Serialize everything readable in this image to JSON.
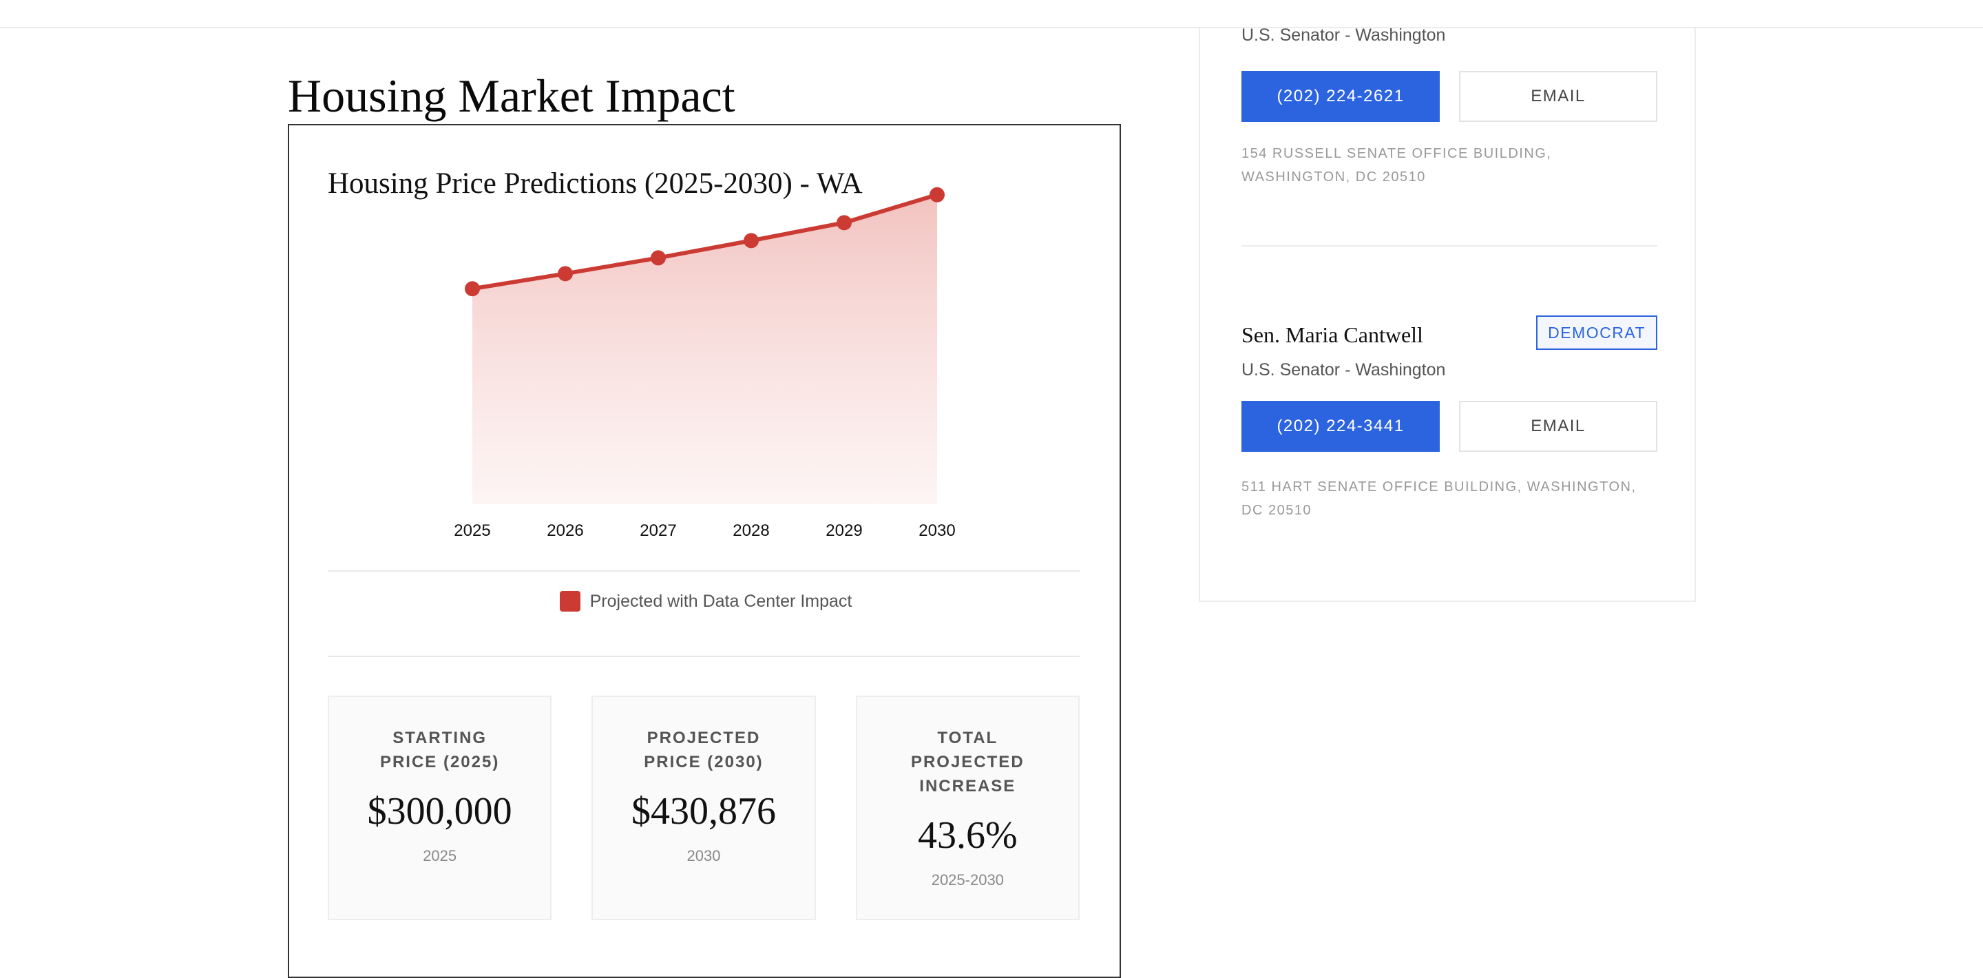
{
  "section_title": "Housing Market Impact",
  "chart_data": {
    "type": "line",
    "title": "Housing Price Predictions (2025-2030) - WA",
    "categories": [
      "2025",
      "2026",
      "2027",
      "2028",
      "2029",
      "2030"
    ],
    "series": [
      {
        "name": "Projected with Data Center Impact",
        "values": [
          300000,
          321000,
          343000,
          367000,
          392000,
          430876
        ],
        "color": "#cc3b33"
      }
    ],
    "ylim": [
      0,
      470000
    ],
    "grid": false,
    "legend_position": "bottom-center",
    "fill": "area-gradient"
  },
  "legend": {
    "label": "Projected with Data Center Impact",
    "color": "#cc3b33"
  },
  "stats": [
    {
      "label": "Starting Price (2025)",
      "value": "$300,000",
      "sub": "2025"
    },
    {
      "label": "Projected Price (2030)",
      "value": "$430,876",
      "sub": "2030"
    },
    {
      "label": "Total Projected Increase",
      "value": "43.6%",
      "sub": "2025-2030"
    }
  ],
  "representatives": [
    {
      "name": "",
      "party": "",
      "role": "U.S. Senator - Washington",
      "phone": "(202) 224-2621",
      "email_label": "EMAIL",
      "address": "154 Russell Senate Office Building, Washington, DC 20510"
    },
    {
      "name": "Sen. Maria Cantwell",
      "party": "DEMOCRAT",
      "role": "U.S. Senator - Washington",
      "phone": "(202) 224-3441",
      "email_label": "EMAIL",
      "address": "511 Hart Senate Office Building, Washington, DC 20510"
    }
  ],
  "colors": {
    "accent_blue": "#2c64e0",
    "chart_red": "#cc3b33"
  }
}
